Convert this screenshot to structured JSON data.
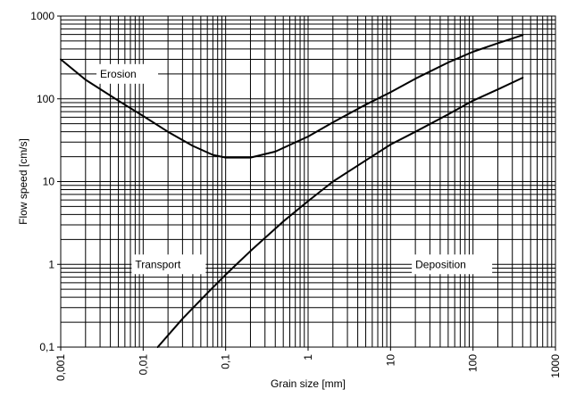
{
  "chart_data": {
    "type": "line",
    "xlabel": "Grain size [mm]",
    "ylabel": "Flow speed [cm/s]",
    "xscale": "log",
    "yscale": "log",
    "xlim": [
      0.001,
      1000
    ],
    "ylim": [
      0.1,
      1000
    ],
    "grid": true,
    "x_ticks": [
      "0,001",
      "0,01",
      "0,1",
      "1",
      "10",
      "100",
      "1000"
    ],
    "y_ticks": [
      "0,1",
      "1",
      "10",
      "100",
      "1000"
    ],
    "series": [
      {
        "color": "#000000",
        "points": [
          [
            0.001,
            300
          ],
          [
            0.002,
            170
          ],
          [
            0.005,
            95
          ],
          [
            0.01,
            62
          ],
          [
            0.02,
            40
          ],
          [
            0.04,
            27
          ],
          [
            0.07,
            21
          ],
          [
            0.1,
            19.5
          ],
          [
            0.2,
            19.5
          ],
          [
            0.4,
            23
          ],
          [
            1,
            35
          ],
          [
            2,
            52
          ],
          [
            5,
            85
          ],
          [
            10,
            120
          ],
          [
            20,
            175
          ],
          [
            50,
            275
          ],
          [
            100,
            370
          ],
          [
            200,
            470
          ],
          [
            400,
            590
          ]
        ]
      },
      {
        "color": "#000000",
        "points": [
          [
            0.015,
            0.1
          ],
          [
            0.03,
            0.22
          ],
          [
            0.06,
            0.45
          ],
          [
            0.1,
            0.75
          ],
          [
            0.2,
            1.45
          ],
          [
            0.5,
            3.3
          ],
          [
            1,
            5.8
          ],
          [
            2,
            10
          ],
          [
            5,
            18
          ],
          [
            10,
            28
          ],
          [
            20,
            40
          ],
          [
            50,
            65
          ],
          [
            100,
            95
          ],
          [
            200,
            130
          ],
          [
            400,
            180
          ]
        ]
      }
    ],
    "annotations": [
      {
        "text": "Erosion",
        "x": 0.003,
        "y": 200
      },
      {
        "text": "Transport",
        "x": 0.008,
        "y": 1
      },
      {
        "text": "Deposition",
        "x": 20,
        "y": 1
      }
    ]
  }
}
